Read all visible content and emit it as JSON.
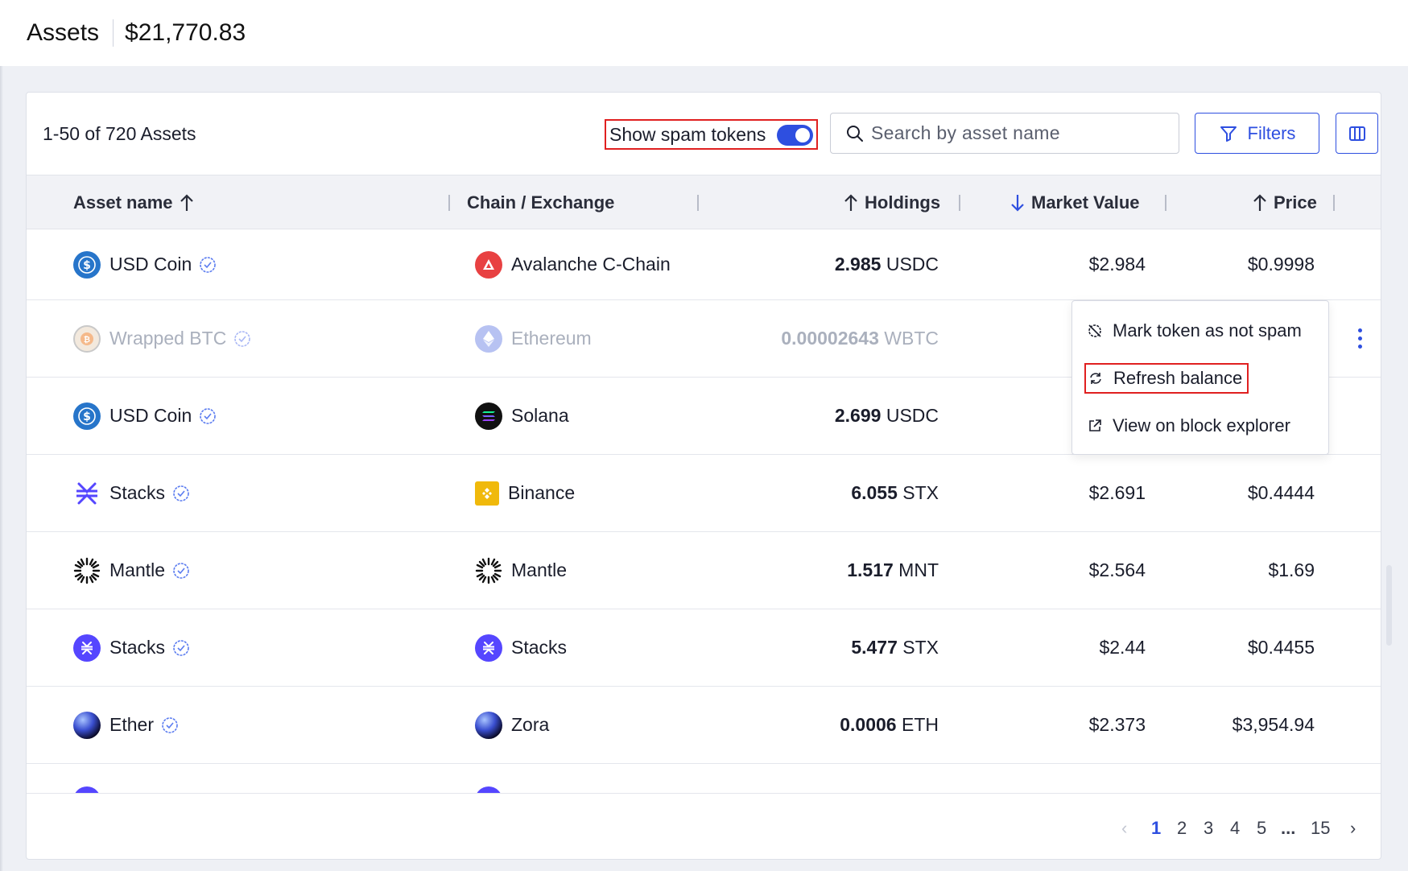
{
  "header": {
    "title": "Assets",
    "total": "$21,770.83"
  },
  "toolbar": {
    "count": "1-50 of 720 Assets",
    "spam_label": "Show spam tokens",
    "search_placeholder": "Search by asset name",
    "filters_label": "Filters"
  },
  "columns": {
    "asset": "Asset name",
    "chain": "Chain / Exchange",
    "holdings": "Holdings",
    "market_value": "Market Value",
    "price": "Price"
  },
  "rows": [
    {
      "asset": "USD Coin",
      "chain": "Avalanche C-Chain",
      "amount": "2.985",
      "symbol": "USDC",
      "value": "$2.984",
      "price": "$0.9998"
    },
    {
      "asset": "Wrapped BTC",
      "chain": "Ethereum",
      "amount": "0.00002643",
      "symbol": "WBTC",
      "value": "",
      "price": ""
    },
    {
      "asset": "USD Coin",
      "chain": "Solana",
      "amount": "2.699",
      "symbol": "USDC",
      "value": "",
      "price": ""
    },
    {
      "asset": "Stacks",
      "chain": "Binance",
      "amount": "6.055",
      "symbol": "STX",
      "value": "$2.691",
      "price": "$0.4444"
    },
    {
      "asset": "Mantle",
      "chain": "Mantle",
      "amount": "1.517",
      "symbol": "MNT",
      "value": "$2.564",
      "price": "$1.69"
    },
    {
      "asset": "Stacks",
      "chain": "Stacks",
      "amount": "5.477",
      "symbol": "STX",
      "value": "$2.44",
      "price": "$0.4455"
    },
    {
      "asset": "Ether",
      "chain": "Zora",
      "amount": "0.0006",
      "symbol": "ETH",
      "value": "$2.373",
      "price": "$3,954.94"
    }
  ],
  "menu": {
    "mark_not_spam": "Mark token as not spam",
    "refresh": "Refresh balance",
    "explorer": "View on block explorer"
  },
  "pagination": {
    "p1": "1",
    "p2": "2",
    "p3": "3",
    "p4": "4",
    "p5": "5",
    "ellipsis": "...",
    "last": "15"
  },
  "colors": {
    "accent": "#2e4fe0",
    "highlight": "#e02020"
  }
}
